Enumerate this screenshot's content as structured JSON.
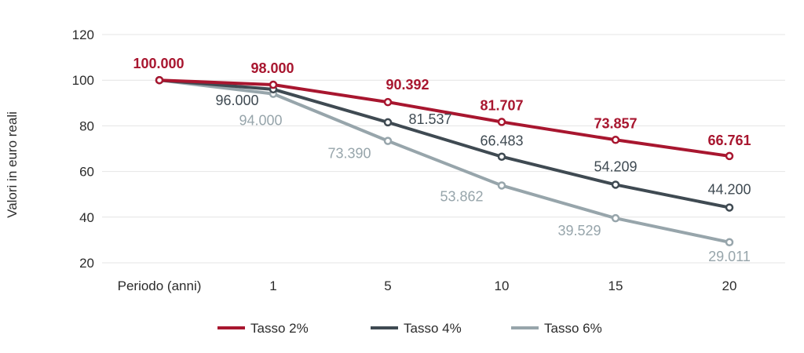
{
  "chart_data": {
    "type": "line",
    "ylabel": "Valori in euro reali",
    "x_axis_first_label": "Periodo (anni)",
    "categories": [
      "1",
      "5",
      "10",
      "15",
      "20"
    ],
    "x": [
      0,
      1,
      5,
      10,
      15,
      20
    ],
    "ylim": [
      20,
      120
    ],
    "yticks": [
      20,
      40,
      60,
      80,
      100,
      120
    ],
    "grid": true,
    "legend_position": "bottom",
    "series": [
      {
        "name": "Tasso 2%",
        "color": "#a8162f",
        "values": [
          100,
          98,
          90.392,
          81.707,
          73.857,
          66.761
        ],
        "labels": [
          "100.000",
          "98.000",
          "90.392",
          "81.707",
          "73.857",
          "66.761"
        ]
      },
      {
        "name": "Tasso 4%",
        "color": "#3f4a52",
        "values": [
          100,
          96,
          81.537,
          66.483,
          54.209,
          44.2
        ],
        "labels": [
          "",
          "96.000",
          "81.537",
          "66.483",
          "54.209",
          "44.200"
        ]
      },
      {
        "name": "Tasso 6%",
        "color": "#97a5ab",
        "values": [
          100,
          94,
          73.39,
          53.862,
          39.529,
          29.011
        ],
        "labels": [
          "",
          "94.000",
          "73.390",
          "53.862",
          "39.529",
          "29.011"
        ]
      }
    ]
  }
}
